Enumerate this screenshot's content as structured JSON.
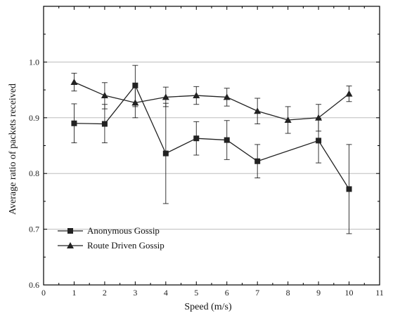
{
  "chart_data": {
    "type": "line",
    "title": "",
    "xlabel": "Speed (m/s)",
    "ylabel": "Average ratio of packets received",
    "xlim": [
      0,
      11
    ],
    "ylim": [
      0.6,
      1.1
    ],
    "xticks": [
      0,
      1,
      2,
      3,
      4,
      5,
      6,
      7,
      8,
      9,
      10,
      11
    ],
    "yticks": [
      0.6,
      0.7,
      0.8,
      0.9,
      1.0
    ],
    "ytick_labels": [
      "0.6",
      "0.7",
      "0.8",
      "0.9",
      "1.0"
    ],
    "x_gridlines": false,
    "y_gridlines": [
      0.7,
      0.8,
      0.9,
      1.0
    ],
    "legend_position": "lower-left",
    "x": [
      1,
      2,
      3,
      4,
      5,
      6,
      7,
      8,
      9,
      10
    ],
    "series": [
      {
        "name": "Anonymous Gossip",
        "marker": "square",
        "values": [
          0.89,
          0.889,
          0.958,
          0.836,
          0.863,
          0.86,
          0.822,
          null,
          0.859,
          0.772
        ],
        "error_low": [
          0.855,
          0.855,
          0.92,
          0.746,
          0.833,
          0.825,
          0.792,
          null,
          0.819,
          0.692
        ],
        "error_high": [
          0.925,
          0.924,
          0.994,
          0.926,
          0.893,
          0.895,
          0.852,
          null,
          0.899,
          0.852
        ]
      },
      {
        "name": "Route Driven Gossip",
        "marker": "triangle-up",
        "values": [
          0.964,
          0.94,
          0.927,
          0.937,
          0.94,
          0.937,
          0.912,
          0.896,
          0.9,
          0.943
        ],
        "error_low": [
          0.948,
          0.916,
          0.9,
          0.92,
          0.924,
          0.921,
          0.889,
          0.872,
          0.876,
          0.929
        ],
        "error_high": [
          0.98,
          0.963,
          0.954,
          0.955,
          0.956,
          0.953,
          0.935,
          0.92,
          0.924,
          0.957
        ]
      }
    ],
    "colors": {
      "line": "#222222",
      "grid": "#bdbdbd",
      "axis": "#000000"
    }
  }
}
